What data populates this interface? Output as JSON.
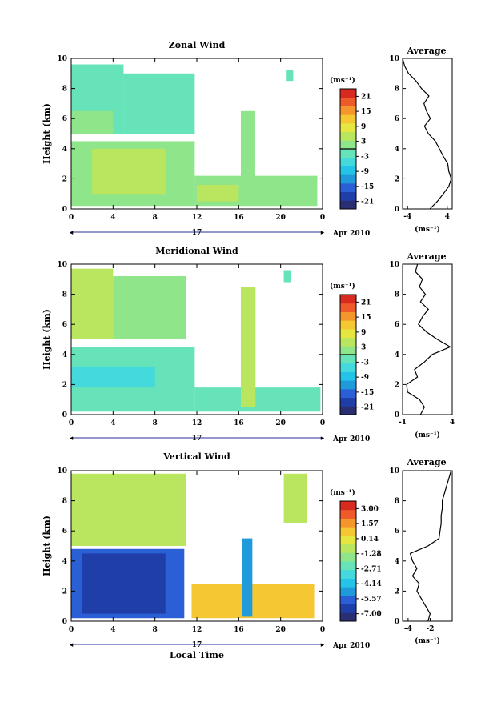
{
  "colors": {
    "scale": [
      "#2a2f73",
      "#1f3ea8",
      "#2a5fd6",
      "#1f9bdc",
      "#23c4e8",
      "#44d9dd",
      "#66e3b8",
      "#8fe58a",
      "#b9e65e",
      "#e5e63f",
      "#f5c733",
      "#f4962c",
      "#ee5a2a",
      "#d92a20"
    ],
    "axis": "#000000"
  },
  "chart_data": [
    {
      "id": "zonal",
      "type": "heatmap",
      "title": "Zonal Wind",
      "ylabel": "Height (km)",
      "xlabel": "",
      "x_ticks": [
        "0",
        "4",
        "8",
        "12",
        "16",
        "20",
        "0"
      ],
      "y_ticks": [
        "0",
        "2",
        "4",
        "6",
        "8",
        "10"
      ],
      "xlim": [
        0,
        24
      ],
      "ylim": [
        0,
        10
      ],
      "date_label": "Apr 2010",
      "day_label": "17",
      "colorbar": {
        "unit": "(ms⁻¹)",
        "ticks": [
          "21",
          "15",
          "9",
          "3",
          "-3",
          "-9",
          "-15",
          "-21"
        ],
        "range": [
          -24,
          24
        ]
      },
      "average": {
        "title": "Average",
        "unit": "(ms⁻¹)",
        "x_ticks": [
          "-4",
          "4"
        ],
        "xlim": [
          -5,
          5
        ],
        "y": [
          0,
          0.5,
          1,
          1.5,
          2,
          2.5,
          3,
          3.5,
          4,
          4.5,
          5,
          5.5,
          6,
          6.5,
          7,
          7.5,
          8,
          8.5,
          9,
          9.5,
          10
        ],
        "x": [
          0.5,
          2.0,
          3.2,
          4.3,
          4.8,
          4.3,
          4.1,
          3.2,
          2.4,
          1.6,
          0.2,
          -0.6,
          0.6,
          -0.2,
          -0.7,
          0.3,
          -1.2,
          -2.3,
          -3.8,
          -4.6,
          -5.0
        ]
      },
      "cells": [
        {
          "t0": 0,
          "t1": 11.8,
          "h0": 0.2,
          "h1": 4.5,
          "v": 2
        },
        {
          "t0": 2,
          "t1": 9,
          "h0": 1,
          "h1": 4,
          "v": 4
        },
        {
          "t0": 11.8,
          "t1": 23.5,
          "h0": 0.2,
          "h1": 2.2,
          "v": 2
        },
        {
          "t0": 12,
          "t1": 16,
          "h0": 0.5,
          "h1": 1.6,
          "v": 4
        },
        {
          "t0": 0,
          "t1": 5,
          "h0": 5,
          "h1": 9.6,
          "v": -3
        },
        {
          "t0": 5,
          "t1": 11.8,
          "h0": 5,
          "h1": 9,
          "v": -2
        },
        {
          "t0": 0,
          "t1": 4,
          "h0": 5,
          "h1": 6.5,
          "v": 3
        },
        {
          "t0": 16.2,
          "t1": 17.5,
          "h0": 0.5,
          "h1": 6.5,
          "v": 3
        },
        {
          "t0": 20.5,
          "t1": 21.2,
          "h0": 8.5,
          "h1": 9.2,
          "v": -3
        }
      ]
    },
    {
      "id": "meridional",
      "type": "heatmap",
      "title": "Meridional Wind",
      "ylabel": "Height (km)",
      "xlabel": "",
      "x_ticks": [
        "0",
        "4",
        "8",
        "12",
        "16",
        "20",
        "0"
      ],
      "y_ticks": [
        "0",
        "2",
        "4",
        "6",
        "8",
        "10"
      ],
      "xlim": [
        0,
        24
      ],
      "ylim": [
        0,
        10
      ],
      "date_label": "Apr 2010",
      "day_label": "17",
      "colorbar": {
        "unit": "(ms⁻¹)",
        "ticks": [
          "21",
          "15",
          "9",
          "3",
          "-3",
          "-9",
          "-15",
          "-21"
        ],
        "range": [
          -24,
          24
        ]
      },
      "average": {
        "title": "Average",
        "unit": "(ms⁻¹)",
        "x_ticks": [
          "-1",
          "4"
        ],
        "xlim": [
          -1,
          4
        ],
        "y": [
          0,
          0.5,
          1,
          1.5,
          2,
          2.5,
          3,
          3.5,
          4,
          4.5,
          5,
          5.5,
          6,
          6.5,
          7,
          7.5,
          8,
          8.5,
          9,
          9.5,
          10
        ],
        "x": [
          0.8,
          1.2,
          0.7,
          -0.5,
          -0.6,
          0.5,
          0.2,
          1.2,
          2.0,
          3.8,
          2.5,
          1.4,
          0.6,
          1.0,
          1.6,
          0.8,
          1.3,
          0.7,
          1.0,
          0.3,
          0.5
        ]
      },
      "cells": [
        {
          "t0": 0,
          "t1": 11.8,
          "h0": 0.2,
          "h1": 4.5,
          "v": -3
        },
        {
          "t0": 0,
          "t1": 8,
          "h0": 1.8,
          "h1": 3.2,
          "v": -6
        },
        {
          "t0": 11.8,
          "t1": 23.8,
          "h0": 0.2,
          "h1": 1.8,
          "v": -3
        },
        {
          "t0": 0,
          "t1": 4,
          "h0": 5,
          "h1": 9.7,
          "v": 4
        },
        {
          "t0": 4,
          "t1": 11,
          "h0": 5,
          "h1": 9.2,
          "v": 2
        },
        {
          "t0": 16.2,
          "t1": 17.6,
          "h0": 0.5,
          "h1": 8.5,
          "v": 5
        },
        {
          "t0": 20.3,
          "t1": 21,
          "h0": 8.8,
          "h1": 9.6,
          "v": -2
        }
      ]
    },
    {
      "id": "vertical",
      "type": "heatmap",
      "title": "Vertical Wind",
      "ylabel": "Height (km)",
      "xlabel": "Local Time",
      "x_ticks": [
        "0",
        "4",
        "8",
        "12",
        "16",
        "20",
        "0"
      ],
      "y_ticks": [
        "0",
        "2",
        "4",
        "6",
        "8",
        "10"
      ],
      "xlim": [
        0,
        24
      ],
      "ylim": [
        0,
        10
      ],
      "date_label": "Apr 2010",
      "day_label": "17",
      "colorbar": {
        "unit": "(ms⁻¹)",
        "ticks": [
          "3.00",
          "1.57",
          "0.14",
          "-1.28",
          "-2.71",
          "-4.14",
          "-5.57",
          "-7.00"
        ],
        "range": [
          -7.7,
          3.7
        ]
      },
      "average": {
        "title": "Average",
        "unit": "(ms⁻¹)",
        "x_ticks": [
          "-4",
          "-2"
        ],
        "xlim": [
          -4.5,
          0
        ],
        "y": [
          0,
          0.5,
          1,
          1.5,
          2,
          2.5,
          3,
          3.5,
          4,
          4.5,
          5,
          5.5,
          6,
          6.5,
          7,
          7.5,
          8,
          8.5,
          9,
          9.5,
          10
        ],
        "x": [
          -2.2,
          -2.0,
          -2.4,
          -2.8,
          -3.2,
          -3.0,
          -3.6,
          -3.2,
          -3.6,
          -3.8,
          -2.2,
          -1.2,
          -1.1,
          -1.0,
          -1.0,
          -0.9,
          -0.9,
          -0.7,
          -0.5,
          -0.3,
          -0.1
        ]
      },
      "cells": [
        {
          "t0": 0,
          "t1": 10.8,
          "h0": 0.2,
          "h1": 4.8,
          "v": -5.6
        },
        {
          "t0": 1,
          "t1": 9,
          "h0": 0.5,
          "h1": 4.5,
          "v": -6.6
        },
        {
          "t0": 0,
          "t1": 11,
          "h0": 5,
          "h1": 9.8,
          "v": -0.6
        },
        {
          "t0": 11.5,
          "t1": 23.2,
          "h0": 0.2,
          "h1": 2.5,
          "v": 0.8
        },
        {
          "t0": 16.3,
          "t1": 17.3,
          "h0": 0.3,
          "h1": 5.5,
          "v": -5.0
        },
        {
          "t0": 20.3,
          "t1": 22.5,
          "h0": 6.5,
          "h1": 9.8,
          "v": -0.5
        }
      ]
    }
  ]
}
